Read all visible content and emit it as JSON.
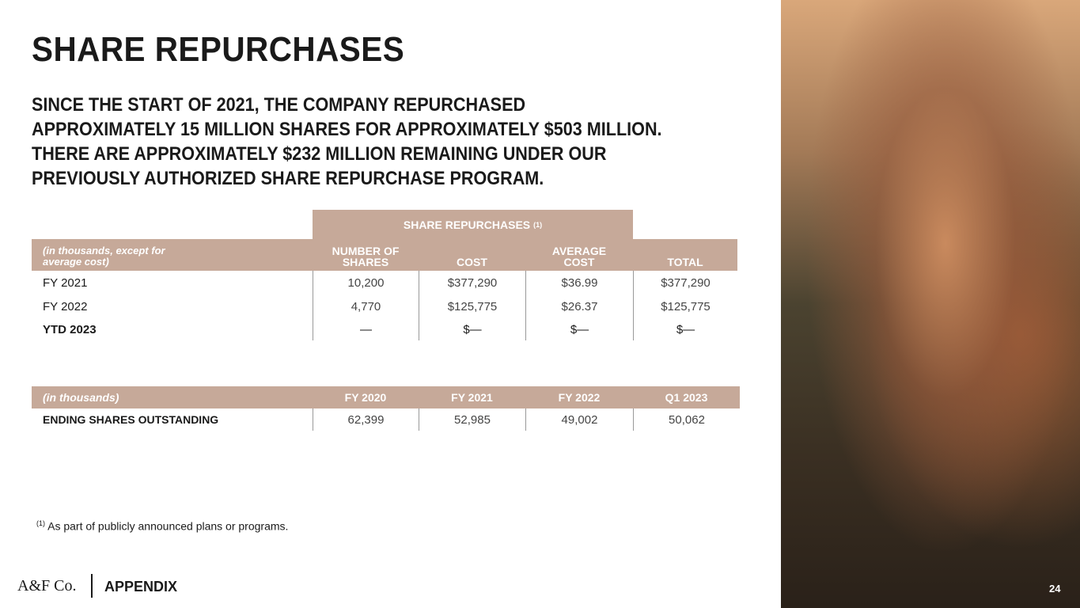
{
  "title": "SHARE REPURCHASES",
  "summary": [
    "SINCE THE START OF 2021, THE COMPANY REPURCHASED",
    "APPROXIMATELY 15 MILLION SHARES FOR APPROXIMATELY $503 MILLION.",
    "THERE ARE APPROXIMATELY $232 MILLION REMAINING UNDER OUR",
    "PREVIOUSLY AUTHORIZED SHARE REPURCHASE PROGRAM."
  ],
  "repurchases_table": {
    "group_header": "SHARE REPURCHASES",
    "group_note": "(1)",
    "headers": [
      "(in thousands, except for average cost)",
      "NUMBER OF SHARES",
      "COST",
      "AVERAGE COST",
      "TOTAL"
    ],
    "rows": [
      [
        "FY 2021",
        "10,200",
        "$377,290",
        "$36.99",
        "$377,290"
      ],
      [
        "FY 2022",
        "4,770",
        "$125,775",
        "$26.37",
        "$125,775"
      ],
      [
        "YTD 2023",
        "—",
        "$—",
        "$—",
        "$—"
      ]
    ]
  },
  "shares_table": {
    "headers": [
      "(in thousands)",
      "FY 2020",
      "FY 2021",
      "FY 2022",
      "Q1 2023"
    ],
    "rows": [
      [
        "ENDING SHARES OUTSTANDING",
        "62,399",
        "52,985",
        "49,002",
        "50,062"
      ]
    ]
  },
  "footnote": {
    "marker": "(1)",
    "text": "As part of publicly announced plans or programs."
  },
  "footer": {
    "logo": "A&F Co.",
    "section": "APPENDIX",
    "page": "24"
  }
}
